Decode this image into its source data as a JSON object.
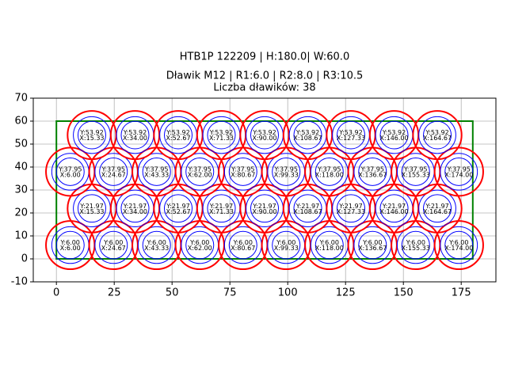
{
  "chart_data": {
    "type": "circles",
    "title": [
      "HTB1P 122209 | H:180.0| W:60.0",
      "Dławik M12 | R1:6.0 | R2:8.0 | R3:10.5",
      "Liczba dławików: 38"
    ],
    "radii": [
      6,
      8,
      10.5
    ],
    "radius_colors": [
      "#0000ff",
      "#0000ff",
      "#ff0000"
    ],
    "rect": {
      "x": [
        0,
        180
      ],
      "y": [
        0,
        60
      ],
      "color": "#008000"
    },
    "x": [
      6,
      24.67,
      43.33,
      62,
      80.67,
      99.33,
      118,
      136.67,
      155.33,
      174,
      15.33,
      34,
      52.67,
      71.33,
      90,
      108.67,
      127.33,
      146,
      164.67,
      6,
      24.67,
      43.33,
      62,
      80.67,
      99.33,
      118,
      136.67,
      155.33,
      174,
      15.33,
      34,
      52.67,
      71.33,
      90,
      108.67,
      127.33,
      146,
      164.67
    ],
    "y": [
      6,
      6,
      6,
      6,
      6,
      6,
      6,
      6,
      6,
      6,
      21.97,
      21.97,
      21.97,
      21.97,
      21.97,
      21.97,
      21.97,
      21.97,
      21.97,
      37.95,
      37.95,
      37.95,
      37.95,
      37.95,
      37.95,
      37.95,
      37.95,
      37.95,
      37.95,
      53.92,
      53.92,
      53.92,
      53.92,
      53.92,
      53.92,
      53.92,
      53.92,
      53.92
    ],
    "x_labels": [
      "X:6.00",
      "X:24.67",
      "X:43.33",
      "X:62.00",
      "X:80.67",
      "X:99.33",
      "X:118.00",
      "X:136.67",
      "X:155.33",
      "X:174.00",
      "X:15.33",
      "X:34.00",
      "X:52.67",
      "X:71.33",
      "X:90.00",
      "X:108.67",
      "X:127.33",
      "X:146.00",
      "X:164.67",
      "X:6.00",
      "X:24.67",
      "X:43.33",
      "X:62.00",
      "X:80.67",
      "X:99.33",
      "X:118.00",
      "X:136.67",
      "X:155.33",
      "X:174.00",
      "X:15.33",
      "X:34.00",
      "X:52.67",
      "X:71.33",
      "X:90.00",
      "X:108.67",
      "X:127.33",
      "X:146.00",
      "X:164.67"
    ],
    "y_labels": [
      "Y:6.00",
      "Y:6.00",
      "Y:6.00",
      "Y:6.00",
      "Y:6.00",
      "Y:6.00",
      "Y:6.00",
      "Y:6.00",
      "Y:6.00",
      "Y:6.00",
      "Y:21.97",
      "Y:21.97",
      "Y:21.97",
      "Y:21.97",
      "Y:21.97",
      "Y:21.97",
      "Y:21.97",
      "Y:21.97",
      "Y:21.97",
      "Y:37.95",
      "Y:37.95",
      "Y:37.95",
      "Y:37.95",
      "Y:37.95",
      "Y:37.95",
      "Y:37.95",
      "Y:37.95",
      "Y:37.95",
      "Y:37.95",
      "Y:53.92",
      "Y:53.92",
      "Y:53.92",
      "Y:53.92",
      "Y:53.92",
      "Y:53.92",
      "Y:53.92",
      "Y:53.92",
      "Y:53.92"
    ],
    "xlim": [
      -10,
      190
    ],
    "ylim": [
      -10,
      70
    ],
    "xticks": [
      0,
      25,
      50,
      75,
      100,
      125,
      150,
      175
    ],
    "yticks": [
      -10,
      0,
      10,
      20,
      30,
      40,
      50,
      60,
      70
    ],
    "grid": true
  }
}
